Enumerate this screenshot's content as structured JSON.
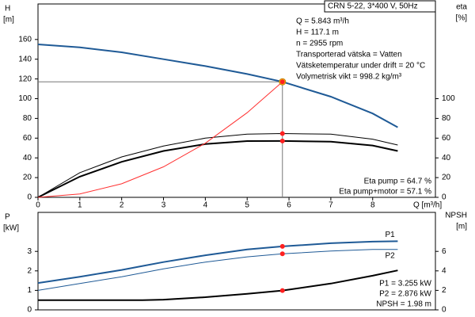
{
  "chart_data": [
    {
      "type": "line",
      "title": "CRN 5-22, 3*400 V, 50Hz",
      "y_label": "H",
      "y_unit": "[m]",
      "y2_label": "eta",
      "y2_unit": "[%]",
      "x_label": "Q [m³/h]",
      "annotations": [
        "Q = 5.843 m³/h",
        "H = 117.1 m",
        "n = 2955 rpm",
        "Transporterad vätska = Vatten",
        "Vätsketemperatur under drift = 20 °C",
        "Volymetrisk vikt = 998.2 kg/m³"
      ],
      "notes": [
        "Eta pump = 64.7 %",
        "Eta pump+motor = 57.1 %"
      ],
      "x": [
        0,
        1,
        2,
        3,
        4,
        5,
        5.843,
        7,
        8,
        8.6
      ],
      "series": [
        {
          "color": "#1f5a96",
          "width": 2,
          "values": [
            155,
            152,
            147,
            140,
            133,
            125,
            117.1,
            102,
            85,
            71
          ]
        },
        {
          "color": "#000000",
          "width": 1,
          "axis": "y2",
          "values": [
            0,
            25,
            41,
            52,
            60,
            64,
            64.7,
            64,
            59,
            53
          ]
        },
        {
          "color": "#000000",
          "width": 2,
          "axis": "y2",
          "values": [
            0,
            21,
            36,
            47,
            54,
            57,
            57.1,
            56.5,
            52.5,
            47
          ]
        },
        {
          "color": "#ff3030",
          "width": 1,
          "values": [
            0,
            3.43,
            13.7,
            30.9,
            54.9,
            85.8,
            117.1,
            null,
            null,
            null
          ]
        }
      ],
      "xlim": [
        0,
        9.5
      ],
      "xticks": [
        0,
        1,
        2,
        3,
        4,
        5,
        6,
        7,
        8
      ],
      "ylim": [
        0,
        196
      ],
      "yticks": [
        0,
        20,
        40,
        60,
        80,
        100,
        120,
        140,
        160
      ],
      "y2lim": [
        0,
        196
      ],
      "y2ticks": [
        0,
        20,
        40,
        60,
        80,
        100
      ]
    },
    {
      "type": "line",
      "y_label": "P",
      "y_unit": "[kW]",
      "y2_label": "NPSH",
      "y2_unit": "[m]",
      "notes": [
        "P1 = 3.255 kW",
        "P2 = 2.876 kW",
        "NPSH = 1.98 m"
      ],
      "x": [
        0,
        1,
        2,
        2.5,
        3,
        4,
        5,
        5.843,
        7,
        8,
        8.6
      ],
      "series": [
        {
          "name": "P1",
          "color": "#1f5a96",
          "width": 2,
          "values": [
            1.38,
            1.7,
            2.05,
            2.25,
            2.45,
            2.8,
            3.1,
            3.255,
            3.42,
            3.5,
            3.52
          ]
        },
        {
          "name": "P2",
          "color": "#1f5a96",
          "width": 1,
          "values": [
            1.0,
            1.35,
            1.7,
            1.9,
            2.1,
            2.45,
            2.72,
            2.876,
            3.02,
            3.1,
            3.1
          ]
        },
        {
          "color": "#000000",
          "width": 2,
          "axis": "y2",
          "values": [
            1.0,
            1.0,
            1.0,
            1.0,
            1.05,
            1.3,
            1.65,
            1.98,
            2.7,
            3.5,
            4.05
          ]
        }
      ],
      "xlim": [
        0,
        9.5
      ],
      "ylim": [
        0,
        5
      ],
      "yticks": [
        0,
        1,
        2,
        3
      ],
      "y2lim": [
        0,
        10
      ],
      "y2ticks": [
        0,
        2,
        4,
        6
      ]
    }
  ]
}
